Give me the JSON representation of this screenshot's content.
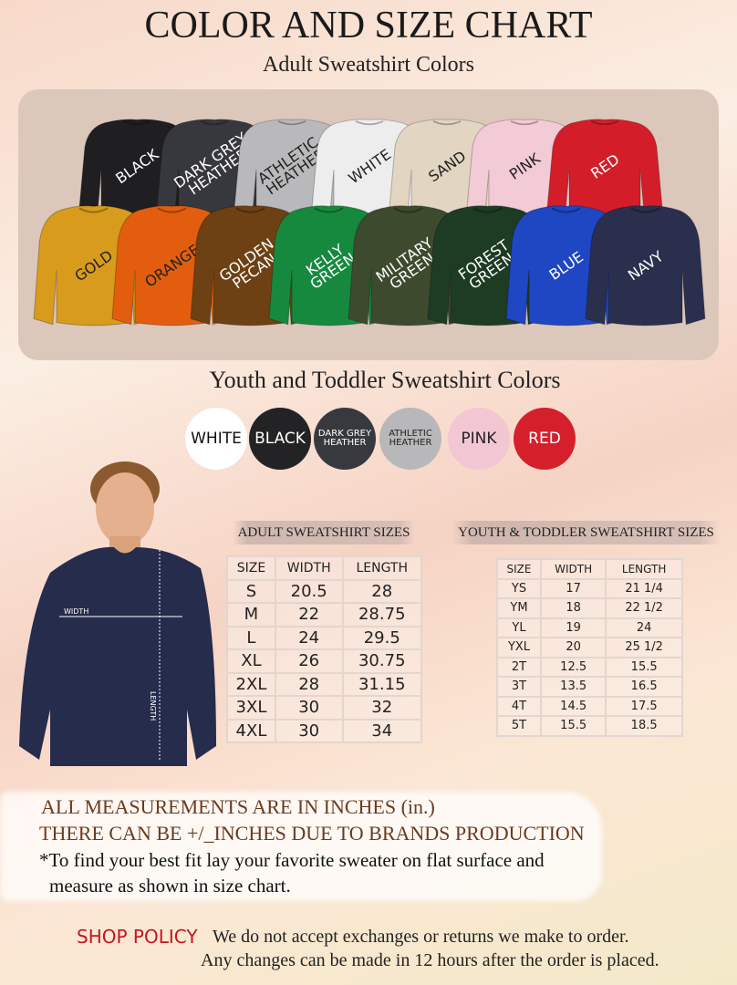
{
  "header": {
    "title": "COLOR AND SIZE CHART",
    "adult_colors_heading": "Adult Sweatshirt Colors",
    "youth_colors_heading": "Youth and Toddler Sweatshirt Colors"
  },
  "adult_colors": [
    {
      "label": "BLACK",
      "color": "#1f1f22",
      "text": "#ffffff"
    },
    {
      "label": "DARK GREY\nHEATHER",
      "color": "#37383d",
      "text": "#ffffff"
    },
    {
      "label": "ATHLETIC\nHEATHER",
      "color": "#b9b9bb",
      "text": "#222222"
    },
    {
      "label": "WHITE",
      "color": "#ededed",
      "text": "#222222"
    },
    {
      "label": "SAND",
      "color": "#e2d5c2",
      "text": "#222222"
    },
    {
      "label": "PINK",
      "color": "#f3cbd7",
      "text": "#222222"
    },
    {
      "label": "RED",
      "color": "#d31e2a",
      "text": "#ffffff"
    },
    {
      "label": "GOLD",
      "color": "#d89b1c",
      "text": "#222222"
    },
    {
      "label": "ORANGE",
      "color": "#e25e0e",
      "text": "#222222"
    },
    {
      "label": "GOLDEN\nPECAN",
      "color": "#6d4113",
      "text": "#ffffff"
    },
    {
      "label": "KELLY\nGREEN",
      "color": "#17893f",
      "text": "#ffffff"
    },
    {
      "label": "MILITARY\nGREEN",
      "color": "#3d4a2d",
      "text": "#ffffff"
    },
    {
      "label": "FOREST\nGREEN",
      "color": "#1e3b24",
      "text": "#ffffff"
    },
    {
      "label": "BLUE",
      "color": "#1f46c3",
      "text": "#ffffff"
    },
    {
      "label": "NAVY",
      "color": "#2a2f4e",
      "text": "#ffffff"
    }
  ],
  "youth_colors": [
    {
      "label": "WHITE",
      "color": "#ffffff",
      "text": "#111111"
    },
    {
      "label": "BLACK",
      "color": "#232325",
      "text": "#ffffff"
    },
    {
      "label": "DARK GREY\nHEATHER",
      "color": "#38393e",
      "text": "#ffffff"
    },
    {
      "label": "ATHLETIC\nHEATHER",
      "color": "#b8b8ba",
      "text": "#222222"
    },
    {
      "label": "PINK",
      "color": "#f2c6d3",
      "text": "#222222"
    },
    {
      "label": "RED",
      "color": "#d5202c",
      "text": "#ffffff"
    }
  ],
  "model": {
    "width_label": "WIDTH",
    "length_label": "LENGTH",
    "sweatshirt_color": "#262c4b"
  },
  "adult_sizes": {
    "title": "ADULT SWEATSHIRT SIZES",
    "columns": [
      "SIZE",
      "WIDTH",
      "LENGTH"
    ],
    "rows": [
      [
        "S",
        "20.5",
        "28"
      ],
      [
        "M",
        "22",
        "28.75"
      ],
      [
        "L",
        "24",
        "29.5"
      ],
      [
        "XL",
        "26",
        "30.75"
      ],
      [
        "2XL",
        "28",
        "31.15"
      ],
      [
        "3XL",
        "30",
        "32"
      ],
      [
        "4XL",
        "30",
        "34"
      ]
    ]
  },
  "youth_sizes": {
    "title": "YOUTH & TODDLER SWEATSHIRT SIZES",
    "columns": [
      "SIZE",
      "WIDTH",
      "LENGTH"
    ],
    "rows": [
      [
        "YS",
        "17",
        "21 1/4"
      ],
      [
        "YM",
        "18",
        "22 1/2"
      ],
      [
        "YL",
        "19",
        "24"
      ],
      [
        "YXL",
        "20",
        "25 1/2"
      ],
      [
        "2T",
        "12.5",
        "15.5"
      ],
      [
        "3T",
        "13.5",
        "16.5"
      ],
      [
        "4T",
        "14.5",
        "17.5"
      ],
      [
        "5T",
        "15.5",
        "18.5"
      ]
    ]
  },
  "notes": {
    "line1": "ALL MEASUREMENTS ARE IN INCHES (in.)",
    "line2": "THERE CAN BE +/_INCHES DUE TO BRANDS PRODUCTION",
    "line3": "*To find your best fit lay your favorite sweater on flat surface and",
    "line4": "measure as shown in size chart."
  },
  "policy": {
    "label": "SHOP POLICY",
    "line1": "We do not accept exchanges or returns we make to order.",
    "line2": "Any changes can be made in 12 hours after the order is placed.",
    "label_color": "#c8141e"
  }
}
